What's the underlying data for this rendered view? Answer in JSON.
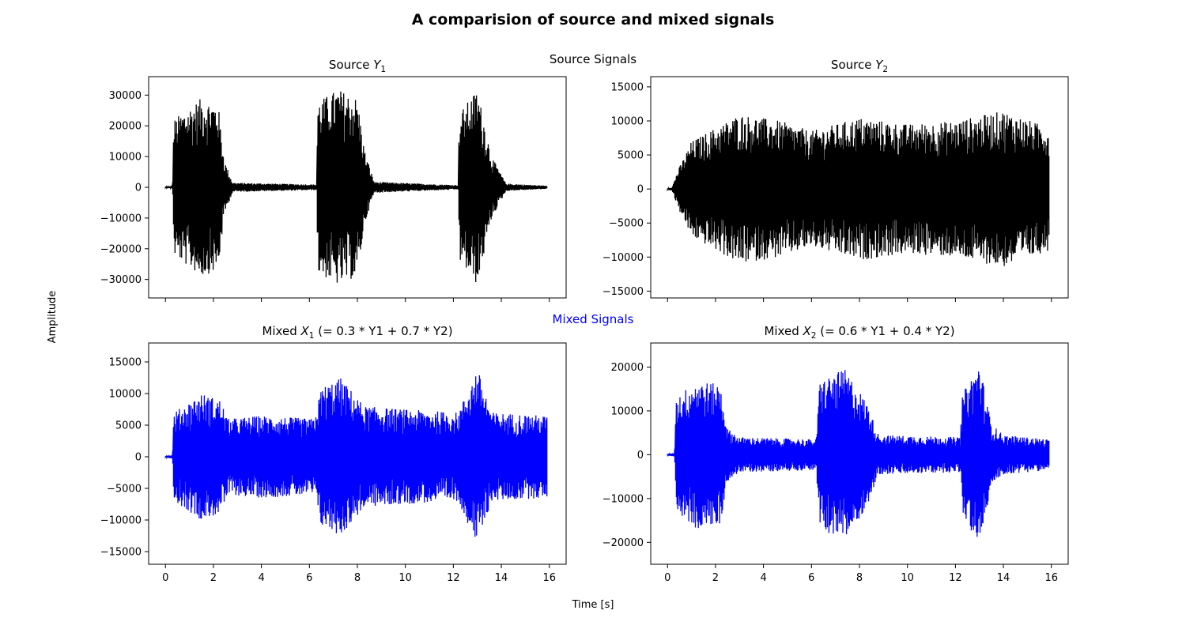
{
  "figure": {
    "title": "A comparision of source and mixed signals",
    "xlabel": "Time [s]",
    "ylabel": "Amplitude",
    "group_labels": {
      "source": "Source Signals",
      "mixed": "Mixed Signals"
    }
  },
  "chart_data": [
    {
      "type": "line",
      "panel": "source-y1",
      "title_parts": {
        "prefix": "Source ",
        "var": "Y",
        "sub": "1",
        "suffix": ""
      },
      "color": "#000000",
      "xlim": [
        -0.7,
        16.7
      ],
      "ylim": [
        -36000,
        36000
      ],
      "xticks": [
        0,
        2,
        4,
        6,
        8,
        10,
        12,
        14,
        16
      ],
      "show_xtick_labels": false,
      "yticks": [
        -30000,
        -20000,
        -10000,
        0,
        10000,
        20000,
        30000
      ],
      "duration_s": 15.9,
      "envelope": [
        {
          "x": 0.0,
          "amp": 200
        },
        {
          "x": 0.3,
          "amp": 400
        },
        {
          "x": 0.35,
          "amp": 22000
        },
        {
          "x": 0.8,
          "amp": 25000
        },
        {
          "x": 1.5,
          "amp": 29000
        },
        {
          "x": 2.2,
          "amp": 27000
        },
        {
          "x": 2.45,
          "amp": 9000
        },
        {
          "x": 2.8,
          "amp": 1500
        },
        {
          "x": 6.3,
          "amp": 900
        },
        {
          "x": 6.35,
          "amp": 28000
        },
        {
          "x": 7.2,
          "amp": 32000
        },
        {
          "x": 8.0,
          "amp": 29000
        },
        {
          "x": 8.3,
          "amp": 12000
        },
        {
          "x": 8.7,
          "amp": 1800
        },
        {
          "x": 12.2,
          "amp": 700
        },
        {
          "x": 12.25,
          "amp": 24000
        },
        {
          "x": 13.0,
          "amp": 32000
        },
        {
          "x": 13.6,
          "amp": 10000
        },
        {
          "x": 14.2,
          "amp": 1200
        },
        {
          "x": 15.9,
          "amp": 500
        }
      ]
    },
    {
      "type": "line",
      "panel": "source-y2",
      "title_parts": {
        "prefix": "Source ",
        "var": "Y",
        "sub": "2",
        "suffix": ""
      },
      "color": "#000000",
      "xlim": [
        -0.7,
        16.7
      ],
      "ylim": [
        -16000,
        16500
      ],
      "xticks": [
        0,
        2,
        4,
        6,
        8,
        10,
        12,
        14,
        16
      ],
      "show_xtick_labels": false,
      "yticks": [
        -15000,
        -10000,
        -5000,
        0,
        5000,
        10000,
        15000
      ],
      "duration_s": 15.9,
      "envelope": [
        {
          "x": 0.0,
          "amp": 100
        },
        {
          "x": 0.2,
          "amp": 300
        },
        {
          "x": 0.4,
          "amp": 2500
        },
        {
          "x": 1.0,
          "amp": 7000
        },
        {
          "x": 2.0,
          "amp": 9000
        },
        {
          "x": 3.0,
          "amp": 11000
        },
        {
          "x": 4.7,
          "amp": 10000
        },
        {
          "x": 6.0,
          "amp": 8500
        },
        {
          "x": 8.0,
          "amp": 10500
        },
        {
          "x": 10.0,
          "amp": 9500
        },
        {
          "x": 12.0,
          "amp": 10000
        },
        {
          "x": 14.0,
          "amp": 11500
        },
        {
          "x": 15.9,
          "amp": 9000
        }
      ]
    },
    {
      "type": "line",
      "panel": "mixed-x1",
      "title_parts": {
        "prefix": "Mixed ",
        "var": "X",
        "sub": "1",
        "suffix": " (= 0.3 * Y1 + 0.7 * Y2)"
      },
      "color": "#0000ff",
      "xlim": [
        -0.7,
        16.7
      ],
      "ylim": [
        -17000,
        18000
      ],
      "xticks": [
        0,
        2,
        4,
        6,
        8,
        10,
        12,
        14,
        16
      ],
      "show_xtick_labels": true,
      "yticks": [
        -15000,
        -10000,
        -5000,
        0,
        5000,
        10000,
        15000
      ],
      "duration_s": 15.9,
      "envelope": [
        {
          "x": 0.0,
          "amp": 100
        },
        {
          "x": 0.3,
          "amp": 300
        },
        {
          "x": 0.35,
          "amp": 7000
        },
        {
          "x": 1.5,
          "amp": 10000
        },
        {
          "x": 2.3,
          "amp": 9000
        },
        {
          "x": 2.6,
          "amp": 6000
        },
        {
          "x": 4.0,
          "amp": 6500
        },
        {
          "x": 6.2,
          "amp": 6000
        },
        {
          "x": 6.5,
          "amp": 11000
        },
        {
          "x": 7.3,
          "amp": 12500
        },
        {
          "x": 8.3,
          "amp": 8000
        },
        {
          "x": 10.0,
          "amp": 7500
        },
        {
          "x": 12.2,
          "amp": 7000
        },
        {
          "x": 13.0,
          "amp": 14000
        },
        {
          "x": 13.6,
          "amp": 7000
        },
        {
          "x": 15.9,
          "amp": 6500
        }
      ]
    },
    {
      "type": "line",
      "panel": "mixed-x2",
      "title_parts": {
        "prefix": "Mixed ",
        "var": "X",
        "sub": "2",
        "suffix": " (= 0.6 * Y1 + 0.4 * Y2)"
      },
      "color": "#0000ff",
      "xlim": [
        -0.7,
        16.7
      ],
      "ylim": [
        -25000,
        25500
      ],
      "xticks": [
        0,
        2,
        4,
        6,
        8,
        10,
        12,
        14,
        16
      ],
      "show_xtick_labels": true,
      "yticks": [
        -20000,
        -10000,
        0,
        10000,
        20000
      ],
      "duration_s": 15.9,
      "envelope": [
        {
          "x": 0.0,
          "amp": 200
        },
        {
          "x": 0.3,
          "amp": 400
        },
        {
          "x": 0.35,
          "amp": 13000
        },
        {
          "x": 1.2,
          "amp": 17000
        },
        {
          "x": 2.2,
          "amp": 16000
        },
        {
          "x": 2.5,
          "amp": 6000
        },
        {
          "x": 3.0,
          "amp": 4000
        },
        {
          "x": 6.2,
          "amp": 3500
        },
        {
          "x": 6.35,
          "amp": 17000
        },
        {
          "x": 7.4,
          "amp": 19500
        },
        {
          "x": 8.3,
          "amp": 12000
        },
        {
          "x": 8.8,
          "amp": 4500
        },
        {
          "x": 12.2,
          "amp": 4000
        },
        {
          "x": 12.3,
          "amp": 14000
        },
        {
          "x": 13.0,
          "amp": 21000
        },
        {
          "x": 13.5,
          "amp": 7000
        },
        {
          "x": 14.0,
          "amp": 4500
        },
        {
          "x": 15.9,
          "amp": 3500
        }
      ]
    }
  ]
}
